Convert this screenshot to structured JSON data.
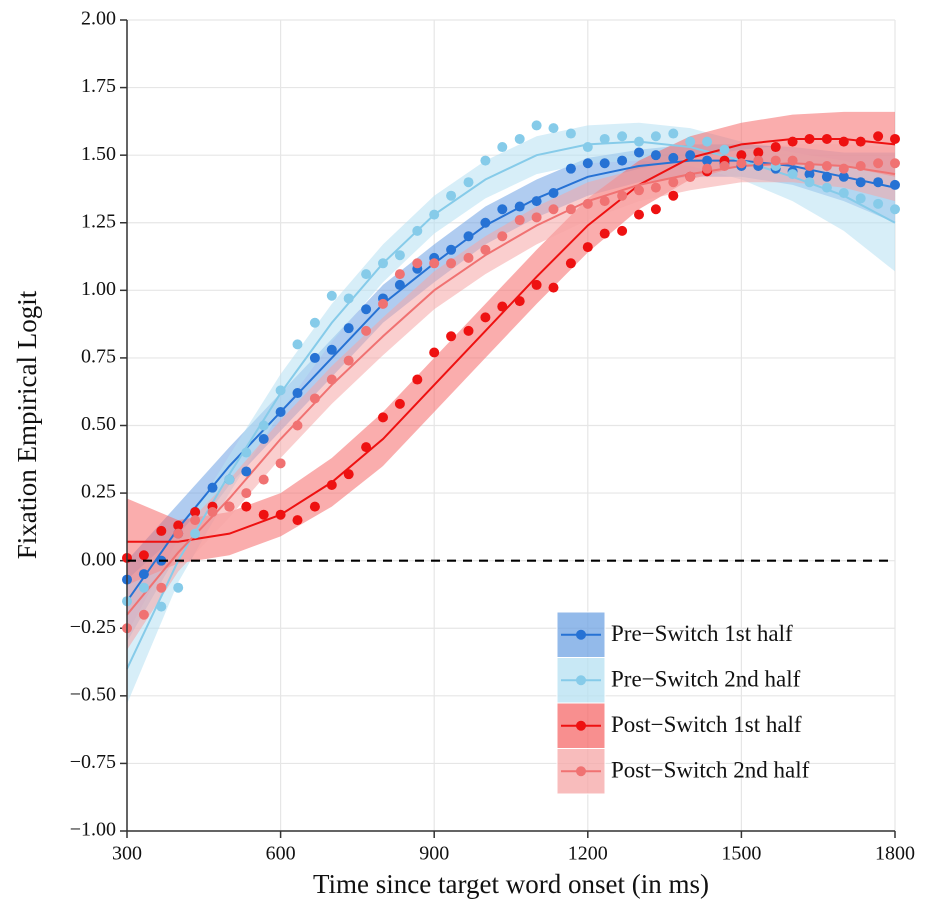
{
  "chart_data": {
    "type": "scatter",
    "x_label": "Time since target word onset (in ms)",
    "y_label": "Fixation Empirical Logit",
    "xlim": [
      300,
      1800
    ],
    "ylim": [
      -1,
      2
    ],
    "xticks": [
      300,
      600,
      900,
      1200,
      1500,
      1800
    ],
    "yticks": [
      {
        "value": -1,
        "label": "−1.00"
      },
      {
        "value": -0.75,
        "label": "−0.75"
      },
      {
        "value": -0.5,
        "label": "−0.50"
      },
      {
        "value": -0.25,
        "label": "−0.25"
      },
      {
        "value": 0,
        "label": "0.00"
      },
      {
        "value": 0.25,
        "label": "0.25"
      },
      {
        "value": 0.5,
        "label": "0.50"
      },
      {
        "value": 0.75,
        "label": "0.75"
      },
      {
        "value": 1,
        "label": "1.00"
      },
      {
        "value": 1.25,
        "label": "1.25"
      },
      {
        "value": 1.5,
        "label": "1.50"
      },
      {
        "value": 1.75,
        "label": "1.75"
      },
      {
        "value": 2,
        "label": "2.00"
      }
    ],
    "grid": true,
    "reference_line": 0,
    "legend_position": "bottom-right",
    "x": [
      300,
      333,
      367,
      400,
      433,
      467,
      500,
      533,
      567,
      600,
      633,
      667,
      700,
      733,
      767,
      800,
      833,
      867,
      900,
      933,
      967,
      1000,
      1033,
      1067,
      1100,
      1133,
      1167,
      1200,
      1233,
      1267,
      1300,
      1333,
      1367,
      1400,
      1433,
      1467,
      1500,
      1533,
      1567,
      1600,
      1633,
      1667,
      1700,
      1733,
      1767,
      1800
    ],
    "fit_x": [
      300,
      400,
      500,
      600,
      700,
      800,
      900,
      1000,
      1100,
      1200,
      1300,
      1400,
      1500,
      1600,
      1700,
      1800
    ],
    "series": [
      {
        "name": "Pre−Switch 1st half",
        "color": "#2672d4",
        "band_color": "#6fa3e3",
        "values": [
          -0.07,
          -0.05,
          0.0,
          0.1,
          0.18,
          0.27,
          0.3,
          0.33,
          0.45,
          0.55,
          0.62,
          0.75,
          0.78,
          0.86,
          0.93,
          0.97,
          1.02,
          1.08,
          1.12,
          1.15,
          1.2,
          1.25,
          1.3,
          1.31,
          1.33,
          1.36,
          1.45,
          1.47,
          1.47,
          1.48,
          1.51,
          1.5,
          1.49,
          1.5,
          1.48,
          1.47,
          1.46,
          1.46,
          1.45,
          1.44,
          1.43,
          1.42,
          1.42,
          1.4,
          1.4,
          1.39
        ],
        "fit": [
          -0.15,
          0.12,
          0.35,
          0.55,
          0.75,
          0.95,
          1.1,
          1.24,
          1.34,
          1.42,
          1.46,
          1.48,
          1.48,
          1.46,
          1.42,
          1.38
        ],
        "lower": [
          -0.3,
          0.03,
          0.28,
          0.48,
          0.68,
          0.88,
          1.03,
          1.17,
          1.27,
          1.35,
          1.4,
          1.42,
          1.42,
          1.39,
          1.33,
          1.25
        ],
        "upper": [
          0.0,
          0.21,
          0.42,
          0.62,
          0.82,
          1.02,
          1.17,
          1.31,
          1.41,
          1.49,
          1.52,
          1.54,
          1.54,
          1.53,
          1.51,
          1.51
        ]
      },
      {
        "name": "Pre−Switch 2nd half",
        "color": "#86cbe9",
        "band_color": "#b6e0f2",
        "values": [
          -0.15,
          -0.1,
          -0.17,
          -0.1,
          0.1,
          0.2,
          0.3,
          0.4,
          0.5,
          0.63,
          0.8,
          0.88,
          0.98,
          0.97,
          1.06,
          1.1,
          1.13,
          1.22,
          1.28,
          1.35,
          1.4,
          1.48,
          1.53,
          1.56,
          1.61,
          1.6,
          1.58,
          1.53,
          1.56,
          1.57,
          1.55,
          1.57,
          1.58,
          1.55,
          1.55,
          1.52,
          1.5,
          1.48,
          1.46,
          1.43,
          1.4,
          1.38,
          1.36,
          1.34,
          1.32,
          1.3
        ],
        "fit": [
          -0.4,
          0.0,
          0.32,
          0.62,
          0.88,
          1.1,
          1.28,
          1.41,
          1.5,
          1.54,
          1.55,
          1.53,
          1.48,
          1.42,
          1.35,
          1.25
        ],
        "lower": [
          -0.53,
          -0.08,
          0.25,
          0.55,
          0.81,
          1.03,
          1.21,
          1.34,
          1.43,
          1.47,
          1.48,
          1.46,
          1.41,
          1.33,
          1.22,
          1.07
        ],
        "upper": [
          -0.27,
          0.08,
          0.39,
          0.69,
          0.95,
          1.17,
          1.35,
          1.48,
          1.57,
          1.61,
          1.62,
          1.6,
          1.55,
          1.51,
          1.48,
          1.43
        ]
      },
      {
        "name": "Post−Switch 1st half",
        "color": "#ee1111",
        "band_color": "#f56a6a",
        "values": [
          0.01,
          0.02,
          0.11,
          0.13,
          0.18,
          0.2,
          0.2,
          0.2,
          0.17,
          0.17,
          0.15,
          0.2,
          0.28,
          0.32,
          0.42,
          0.53,
          0.58,
          0.67,
          0.77,
          0.83,
          0.85,
          0.9,
          0.94,
          0.96,
          1.02,
          1.01,
          1.1,
          1.16,
          1.21,
          1.22,
          1.28,
          1.3,
          1.35,
          1.42,
          1.44,
          1.48,
          1.5,
          1.51,
          1.53,
          1.55,
          1.56,
          1.56,
          1.55,
          1.55,
          1.57,
          1.56
        ],
        "fit": [
          0.07,
          0.07,
          0.1,
          0.17,
          0.29,
          0.45,
          0.65,
          0.85,
          1.05,
          1.24,
          1.39,
          1.49,
          1.54,
          1.56,
          1.56,
          1.54
        ],
        "lower": [
          -0.09,
          -0.01,
          0.02,
          0.09,
          0.2,
          0.35,
          0.55,
          0.75,
          0.95,
          1.14,
          1.3,
          1.41,
          1.46,
          1.47,
          1.46,
          1.42
        ],
        "upper": [
          0.23,
          0.15,
          0.18,
          0.25,
          0.38,
          0.55,
          0.75,
          0.95,
          1.15,
          1.34,
          1.48,
          1.57,
          1.62,
          1.65,
          1.66,
          1.66
        ]
      },
      {
        "name": "Post−Switch 2nd half",
        "color": "#f07272",
        "band_color": "#f6a5a5",
        "values": [
          -0.25,
          -0.2,
          -0.1,
          0.1,
          0.15,
          0.18,
          0.2,
          0.25,
          0.3,
          0.36,
          0.5,
          0.6,
          0.67,
          0.74,
          0.85,
          0.95,
          1.06,
          1.1,
          1.1,
          1.1,
          1.12,
          1.15,
          1.2,
          1.26,
          1.27,
          1.3,
          1.3,
          1.32,
          1.33,
          1.35,
          1.37,
          1.38,
          1.4,
          1.42,
          1.45,
          1.46,
          1.47,
          1.48,
          1.48,
          1.48,
          1.46,
          1.46,
          1.45,
          1.46,
          1.47,
          1.47
        ],
        "fit": [
          -0.2,
          0.03,
          0.23,
          0.45,
          0.65,
          0.83,
          1.0,
          1.13,
          1.24,
          1.33,
          1.39,
          1.43,
          1.46,
          1.47,
          1.46,
          1.43
        ],
        "lower": [
          -0.33,
          -0.04,
          0.16,
          0.38,
          0.58,
          0.76,
          0.93,
          1.06,
          1.17,
          1.26,
          1.33,
          1.37,
          1.4,
          1.4,
          1.38,
          1.33
        ],
        "upper": [
          -0.07,
          0.1,
          0.3,
          0.52,
          0.72,
          0.9,
          1.07,
          1.2,
          1.31,
          1.4,
          1.45,
          1.49,
          1.52,
          1.54,
          1.54,
          1.53
        ]
      }
    ]
  }
}
